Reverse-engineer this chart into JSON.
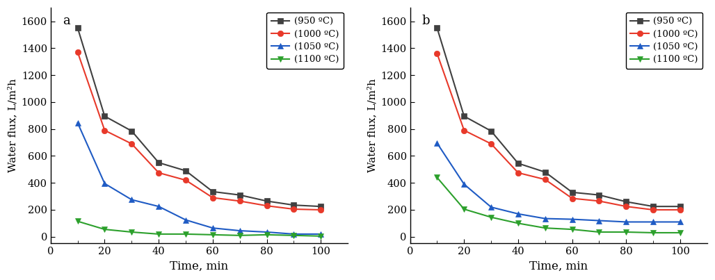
{
  "time": [
    10,
    20,
    30,
    40,
    50,
    60,
    70,
    80,
    90,
    100
  ],
  "panel_a": {
    "label": "a",
    "series": {
      "950": [
        1550,
        895,
        785,
        550,
        490,
        335,
        310,
        265,
        235,
        225
      ],
      "1000": [
        1370,
        790,
        690,
        475,
        420,
        290,
        265,
        230,
        205,
        200
      ],
      "1050": [
        845,
        395,
        275,
        225,
        125,
        65,
        45,
        35,
        20,
        20
      ],
      "1100": [
        115,
        55,
        35,
        20,
        20,
        15,
        10,
        15,
        10,
        5
      ]
    }
  },
  "panel_b": {
    "label": "b",
    "series": {
      "950": [
        1550,
        895,
        785,
        545,
        480,
        330,
        310,
        260,
        225,
        225
      ],
      "1000": [
        1360,
        790,
        690,
        475,
        425,
        285,
        265,
        225,
        200,
        200
      ],
      "1050": [
        695,
        390,
        220,
        170,
        135,
        130,
        120,
        110,
        110,
        110
      ],
      "1100": [
        440,
        205,
        145,
        100,
        65,
        55,
        35,
        35,
        30,
        30
      ]
    }
  },
  "colors": {
    "950": "#404040",
    "1000": "#e8392a",
    "1050": "#1f5bc4",
    "1100": "#2ca02c"
  },
  "markers": {
    "950": "s",
    "1000": "o",
    "1050": "^",
    "1100": "v"
  },
  "legend_labels": {
    "950": "(950 ºC)",
    "1000": "(1000 ºC)",
    "1050": "(1050 ºC)",
    "1100": "(1100 ºC)"
  },
  "ylabel": "Water flux, L/m²h",
  "xlabel": "Time, min",
  "ylim": [
    -50,
    1700
  ],
  "xlim": [
    0,
    110
  ],
  "yticks": [
    0,
    200,
    400,
    600,
    800,
    1000,
    1200,
    1400,
    1600
  ],
  "xticks": [
    0,
    20,
    40,
    60,
    80,
    100
  ],
  "xticks_minor": [
    10,
    30,
    50,
    70,
    90
  ]
}
